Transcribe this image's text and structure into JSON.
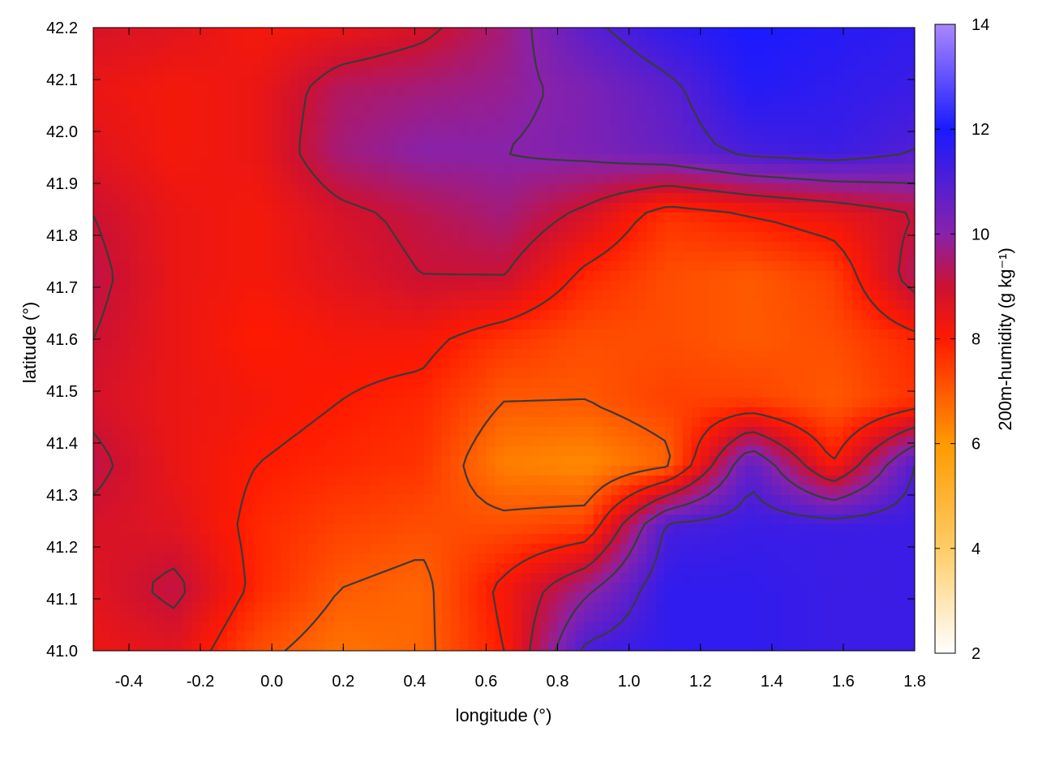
{
  "chart_data": {
    "type": "heatmap",
    "title": "",
    "xlabel": "longitude (°)",
    "ylabel": "latitude (°)",
    "colorbar_label": "200m-humidity (g kg⁻¹)",
    "xlim": [
      -0.5,
      1.8
    ],
    "ylim": [
      41.0,
      42.2
    ],
    "clim": [
      2,
      14
    ],
    "x_ticks": [
      -0.4,
      -0.2,
      0.0,
      0.2,
      0.4,
      0.6,
      0.8,
      1.0,
      1.2,
      1.4,
      1.6,
      1.8
    ],
    "x_tick_labels": [
      "-0.4",
      "-0.2",
      "0.0",
      "0.2",
      "0.4",
      "0.6",
      "0.8",
      "1.0",
      "1.2",
      "1.4",
      "1.6",
      "1.8"
    ],
    "y_ticks": [
      41.0,
      41.1,
      41.2,
      41.3,
      41.4,
      41.5,
      41.6,
      41.7,
      41.8,
      41.9,
      42.0,
      42.1,
      42.2
    ],
    "y_tick_labels": [
      "41.0",
      "41.1",
      "41.2",
      "41.3",
      "41.4",
      "41.5",
      "41.6",
      "41.7",
      "41.8",
      "41.9",
      "42.0",
      "42.1",
      "42.2"
    ],
    "colorbar_ticks": [
      2,
      4,
      6,
      8,
      10,
      12,
      14
    ],
    "colorbar_tick_labels": [
      "2",
      "4",
      "6",
      "8",
      "10",
      "12",
      "14"
    ],
    "colormap": [
      {
        "value": 2,
        "color": "#ffffff"
      },
      {
        "value": 4,
        "color": "#ffcc66"
      },
      {
        "value": 6,
        "color": "#ff9900"
      },
      {
        "value": 8,
        "color": "#ff1a00"
      },
      {
        "value": 9,
        "color": "#cc1133"
      },
      {
        "value": 10,
        "color": "#8822aa"
      },
      {
        "value": 12,
        "color": "#1a1aff"
      },
      {
        "value": 14,
        "color": "#aa88ff"
      }
    ],
    "contour_color": "#3a3a3a",
    "sample_grid": {
      "longitude": [
        -0.5,
        -0.27,
        -0.04,
        0.19,
        0.42,
        0.65,
        0.88,
        1.11,
        1.34,
        1.57,
        1.8
      ],
      "latitude": [
        42.2,
        42.08,
        41.96,
        41.84,
        41.72,
        41.6,
        41.48,
        41.36,
        41.24,
        41.12,
        41.0
      ],
      "values": [
        [
          8.8,
          8.6,
          8.2,
          8.4,
          8.8,
          9.6,
          10.8,
          11.6,
          12.0,
          11.8,
          11.6
        ],
        [
          8.4,
          8.2,
          8.4,
          9.4,
          9.6,
          9.8,
          10.2,
          10.8,
          11.8,
          11.6,
          11.4
        ],
        [
          8.6,
          8.2,
          8.4,
          9.6,
          10.0,
          10.0,
          10.2,
          10.6,
          11.2,
          11.4,
          11.0
        ],
        [
          9.0,
          8.4,
          8.2,
          8.8,
          9.2,
          9.6,
          8.8,
          7.6,
          8.0,
          8.4,
          9.0
        ],
        [
          9.2,
          8.4,
          8.2,
          8.6,
          9.0,
          9.0,
          7.8,
          7.2,
          7.0,
          7.4,
          9.4
        ],
        [
          9.0,
          8.4,
          8.0,
          8.2,
          8.2,
          7.6,
          7.2,
          7.2,
          7.0,
          7.2,
          7.8
        ],
        [
          8.8,
          8.4,
          8.2,
          8.0,
          7.8,
          7.0,
          7.0,
          7.4,
          7.4,
          7.0,
          7.6
        ],
        [
          9.2,
          8.4,
          8.0,
          7.8,
          7.6,
          6.4,
          6.2,
          6.8,
          10.8,
          8.0,
          11.0
        ],
        [
          8.8,
          8.6,
          7.8,
          7.4,
          7.2,
          7.2,
          7.4,
          11.2,
          11.4,
          11.4,
          11.4
        ],
        [
          8.6,
          9.2,
          7.8,
          7.0,
          6.8,
          8.2,
          9.8,
          11.6,
          11.6,
          11.4,
          11.4
        ],
        [
          8.4,
          8.6,
          7.2,
          6.6,
          6.8,
          8.0,
          11.2,
          11.6,
          11.6,
          11.4,
          11.4
        ]
      ]
    }
  }
}
